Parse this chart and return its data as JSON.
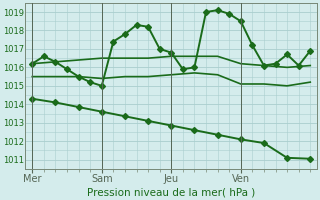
{
  "xlabel": "Pression niveau de la mer( hPa )",
  "bg_color": "#d4ecec",
  "grid_color": "#aacece",
  "line_color": "#1a6b1a",
  "ylim": [
    1010.5,
    1019.5
  ],
  "yticks": [
    1011,
    1012,
    1013,
    1014,
    1015,
    1016,
    1017,
    1018,
    1019
  ],
  "xlim": [
    -0.3,
    12.3
  ],
  "x_vlines": [
    0,
    3,
    6,
    9
  ],
  "xtick_positions": [
    0,
    3,
    6,
    9
  ],
  "xtick_labels": [
    "Mer",
    "Sam",
    "Jeu",
    "Ven"
  ],
  "series": [
    {
      "x": [
        0,
        0.5,
        1,
        1.5,
        2,
        2.5,
        3,
        3.5,
        4,
        4.5,
        5,
        5.5,
        6,
        6.5,
        7,
        7.5,
        8,
        8.5,
        9,
        9.5,
        10,
        10.5,
        11,
        11.5,
        12
      ],
      "y": [
        1016.2,
        1016.6,
        1016.3,
        1015.9,
        1015.5,
        1015.2,
        1015.0,
        1017.4,
        1017.8,
        1018.3,
        1018.2,
        1017.0,
        1016.8,
        1015.9,
        1016.0,
        1019.0,
        1019.1,
        1018.9,
        1018.5,
        1017.2,
        1016.1,
        1016.2,
        1016.7,
        1016.1,
        1016.9
      ],
      "marker": "D",
      "markersize": 3,
      "linewidth": 1.4
    },
    {
      "x": [
        0,
        1,
        2,
        3,
        4,
        5,
        6,
        7,
        8,
        9,
        10,
        11,
        12
      ],
      "y": [
        1016.2,
        1016.3,
        1016.4,
        1016.5,
        1016.5,
        1016.5,
        1016.6,
        1016.6,
        1016.6,
        1016.2,
        1016.1,
        1016.0,
        1016.1
      ],
      "marker": null,
      "linewidth": 1.2
    },
    {
      "x": [
        0,
        1,
        2,
        3,
        4,
        5,
        6,
        7,
        8,
        9,
        10,
        11,
        12
      ],
      "y": [
        1015.5,
        1015.5,
        1015.5,
        1015.4,
        1015.5,
        1015.5,
        1015.6,
        1015.7,
        1015.6,
        1015.1,
        1015.1,
        1015.0,
        1015.2
      ],
      "marker": null,
      "linewidth": 1.2
    },
    {
      "x": [
        0,
        1,
        2,
        3,
        4,
        5,
        6,
        7,
        8,
        9,
        10,
        11,
        12
      ],
      "y": [
        1014.3,
        1014.1,
        1013.85,
        1013.6,
        1013.35,
        1013.1,
        1012.85,
        1012.6,
        1012.35,
        1012.1,
        1011.9,
        1011.1,
        1011.05
      ],
      "marker": "D",
      "markersize": 3,
      "linewidth": 1.4
    }
  ]
}
